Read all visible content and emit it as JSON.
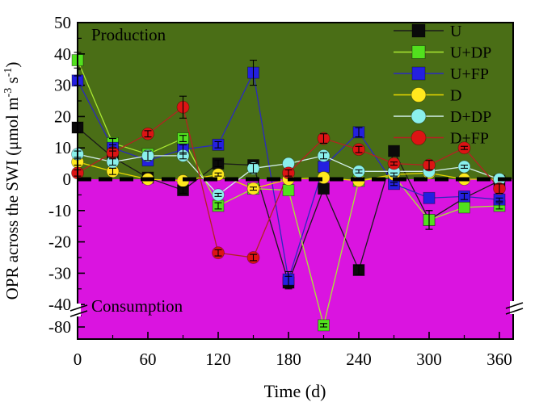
{
  "chart_data": {
    "type": "line",
    "title": "",
    "xlabel": "Time (d)",
    "ylabel_parts": [
      "OPR across the SWI (μmol m",
      "-3",
      " s",
      "-1",
      ")"
    ],
    "x_ticks": [
      0,
      60,
      120,
      180,
      240,
      300,
      360
    ],
    "x_minor_ticks": [
      30,
      90,
      150,
      210,
      270,
      330
    ],
    "xlim": [
      0,
      372
    ],
    "y_ticks": [
      50,
      40,
      30,
      20,
      10,
      0,
      -10,
      -20,
      -30,
      -40,
      -80
    ],
    "y_minor_ticks": [
      45,
      35,
      25,
      15,
      5,
      -5,
      -15,
      -25,
      -35,
      -60
    ],
    "ylim": [
      -80,
      50
    ],
    "axis_break": {
      "upper": -40,
      "lower": -80
    },
    "grid": false,
    "regions": {
      "production": {
        "label": "Production",
        "color": "#4a6e16",
        "label_color": "#d9e845"
      },
      "consumption": {
        "label": "Consumption",
        "color": "#da14e0",
        "label_color": "#101010"
      }
    },
    "zero_line": {
      "value": 0,
      "color": "#000000",
      "style": "dashed"
    },
    "x": [
      0,
      30,
      60,
      90,
      120,
      150,
      180,
      210,
      240,
      270,
      300,
      330,
      360
    ],
    "series": [
      {
        "name": "U",
        "marker": "square",
        "color": "#0a0a0a",
        "line_color": "#1a1a1a",
        "values": [
          16.5,
          7,
          0.5,
          -3.5,
          5,
          4.5,
          -33,
          -3,
          -29,
          9,
          -13,
          -6,
          -0.5
        ],
        "errors": [
          1.5,
          0,
          0,
          1,
          1,
          0,
          2,
          0,
          1.5,
          0,
          3,
          0,
          0
        ]
      },
      {
        "name": "U+DP",
        "marker": "square",
        "color": "#52e01e",
        "line_color": "#a9e832",
        "values": [
          38,
          11.5,
          8,
          13,
          -8.5,
          -3,
          -3.5,
          -77,
          -0.5,
          1,
          -13,
          -9,
          -8.5
        ],
        "errors": [
          2.5,
          1.5,
          0,
          1,
          1,
          0,
          0,
          3,
          0,
          0,
          3,
          0,
          1
        ]
      },
      {
        "name": "U+FP",
        "marker": "square",
        "color": "#2420e0",
        "line_color": "#2a2abf",
        "values": [
          31.5,
          10,
          6,
          9.5,
          11,
          34,
          -32,
          4,
          15,
          -1.5,
          -6,
          -5.5,
          -6.5
        ],
        "errors": [
          1.5,
          1,
          0,
          1.5,
          1,
          4,
          2.5,
          0,
          1.5,
          0.5,
          0,
          1,
          0.5
        ]
      },
      {
        "name": "D",
        "marker": "circle",
        "color": "#ffe81e",
        "line_color": "#e8d800",
        "values": [
          5.5,
          2.5,
          0,
          -0.5,
          1.5,
          -3,
          0,
          0.5,
          -0.5,
          1.5,
          2,
          0,
          0
        ],
        "errors": [
          1,
          1,
          0,
          0,
          0.5,
          0.5,
          0,
          0,
          0,
          0.5,
          0,
          0,
          0
        ]
      },
      {
        "name": "D+DP",
        "marker": "circle",
        "color": "#8af0ec",
        "line_color": "#d2efe9",
        "values": [
          8,
          5.5,
          7.5,
          7.5,
          -5,
          3.5,
          5,
          7.5,
          2.5,
          2.5,
          2.5,
          4,
          0
        ],
        "errors": [
          1,
          1,
          1.5,
          1,
          0.5,
          1.5,
          0,
          1,
          0.5,
          0,
          0,
          0.5,
          0
        ]
      },
      {
        "name": "D+FP",
        "marker": "circle",
        "color": "#dc1414",
        "line_color": "#b42222",
        "values": [
          2,
          8.5,
          14.5,
          23,
          -23.5,
          -25,
          2,
          13,
          9.5,
          5,
          4.5,
          10,
          -3
        ],
        "errors": [
          1,
          1.5,
          1,
          3.5,
          1,
          1,
          1,
          1.5,
          1,
          0.5,
          1.5,
          0.5,
          1.5
        ]
      }
    ],
    "legend": {
      "position": "top-right",
      "entries": [
        "U",
        "U+DP",
        "U+FP",
        "D",
        "D+DP",
        "D+FP"
      ]
    }
  }
}
